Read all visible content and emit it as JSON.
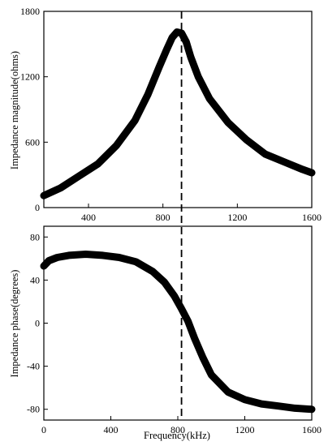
{
  "chart_data": [
    {
      "type": "line",
      "xlabel": "",
      "ylabel": "Impedance magnitude(ohms)",
      "xlim": [
        160,
        1600
      ],
      "ylim": [
        0,
        1800
      ],
      "xticks": [
        "400",
        "800",
        "1200",
        "1600"
      ],
      "yticks": [
        "0",
        "600",
        "1200",
        "1800"
      ],
      "reference_line_x": 900,
      "series": [
        {
          "x": [
            160,
            250,
            350,
            450,
            550,
            650,
            720,
            780,
            820,
            850,
            875,
            900,
            925,
            950,
            990,
            1050,
            1150,
            1250,
            1350,
            1450,
            1550,
            1600
          ],
          "y": [
            110,
            180,
            290,
            400,
            570,
            800,
            1040,
            1290,
            1450,
            1560,
            1610,
            1600,
            1520,
            1380,
            1200,
            1000,
            780,
            620,
            490,
            420,
            350,
            320
          ]
        }
      ]
    },
    {
      "type": "line",
      "xlabel": "Frequency(kHz)",
      "ylabel": "Impedance phase(degrees)",
      "xlim": [
        0,
        1600
      ],
      "ylim": [
        -90,
        90
      ],
      "xticks": [
        "0",
        "400",
        "800",
        "1200",
        "1600"
      ],
      "yticks": [
        "-80",
        "-40",
        "0",
        "40",
        "80"
      ],
      "reference_line_x": 860,
      "series": [
        {
          "x": [
            0,
            30,
            80,
            150,
            250,
            350,
            450,
            550,
            650,
            720,
            780,
            820,
            860,
            900,
            950,
            1000,
            1100,
            1200,
            1300,
            1400,
            1500,
            1600
          ],
          "y": [
            53,
            58,
            61,
            63,
            64,
            63,
            61,
            57,
            48,
            38,
            25,
            14,
            2,
            -14,
            -32,
            -48,
            -64,
            -71,
            -75,
            -77,
            -79,
            -80
          ]
        }
      ]
    }
  ]
}
